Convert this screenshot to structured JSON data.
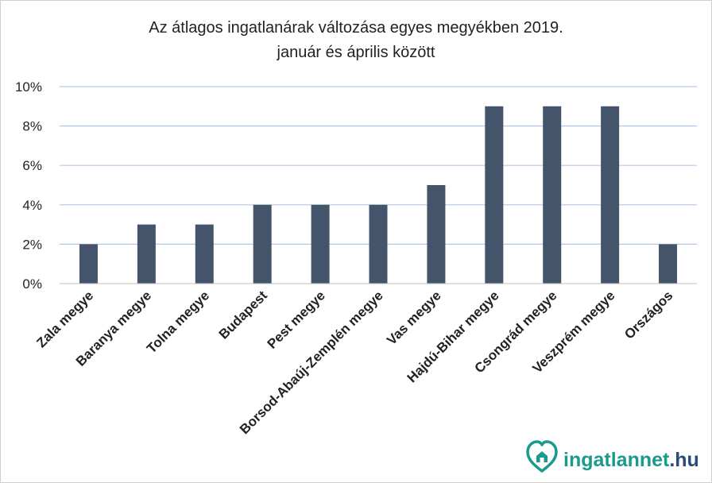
{
  "chart_data": {
    "type": "bar",
    "title_lines": [
      "Az átlagos ingatlanárak változása egyes megyékben 2019.",
      "január és április között"
    ],
    "categories": [
      "Zala megye",
      "Baranya megye",
      "Tolna megye",
      "Budapest",
      "Pest megye",
      "Borsod-Abaúj-Zemplén megye",
      "Vas megye",
      "Hajdú-Bihar megye",
      "Csongrád megye",
      "Veszprém megye",
      "Országos"
    ],
    "values": [
      2,
      3,
      3,
      4,
      4,
      4,
      5,
      9,
      9,
      9,
      2
    ],
    "ylim": [
      0,
      10
    ],
    "yticks": [
      "0%",
      "2%",
      "4%",
      "6%",
      "8%",
      "10%"
    ],
    "grid": true,
    "bar_color": "#44546a",
    "grid_color": "#b4c7e7"
  },
  "logo": {
    "brand": "ingatlannet",
    "tld": ".hu",
    "brand_color": "#1a9a8c",
    "tld_color": "#2a4a7a"
  }
}
